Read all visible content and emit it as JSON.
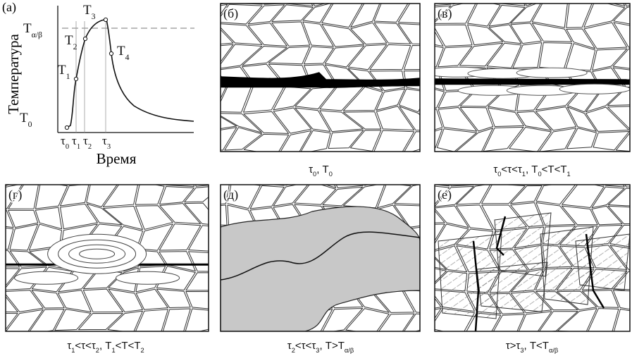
{
  "graph": {
    "label": "(а)",
    "y_axis": "Температура",
    "x_axis": "Время",
    "temps": [
      [
        "T",
        "0"
      ],
      [
        "T",
        "1"
      ],
      [
        "T",
        "2"
      ],
      [
        "T",
        "3"
      ],
      [
        "T",
        "4"
      ]
    ],
    "t_ab": [
      "T",
      "α/β"
    ],
    "times": [
      [
        "τ",
        "0"
      ],
      [
        "τ",
        "1"
      ],
      [
        "τ",
        "2"
      ],
      [
        "τ",
        "3"
      ]
    ]
  },
  "panels": [
    {
      "label": "(б)",
      "caption": [
        "τ",
        "0",
        ", T",
        "0"
      ]
    },
    {
      "label": "(в)",
      "caption": [
        "τ",
        "0",
        "<τ<τ",
        "1",
        ", T",
        "0",
        "<T<T",
        "1"
      ]
    },
    {
      "label": "(г)",
      "caption": [
        "τ",
        "1",
        "<τ<τ",
        "2",
        ", T",
        "1",
        "<T<T",
        "2"
      ]
    },
    {
      "label": "(д)",
      "caption": [
        "τ",
        "2",
        "<τ<τ",
        "3",
        ", T>T",
        "α/β"
      ]
    },
    {
      "label": "(е)",
      "caption": [
        "τ>τ",
        "3",
        ", T<T",
        "α/β"
      ]
    }
  ]
}
